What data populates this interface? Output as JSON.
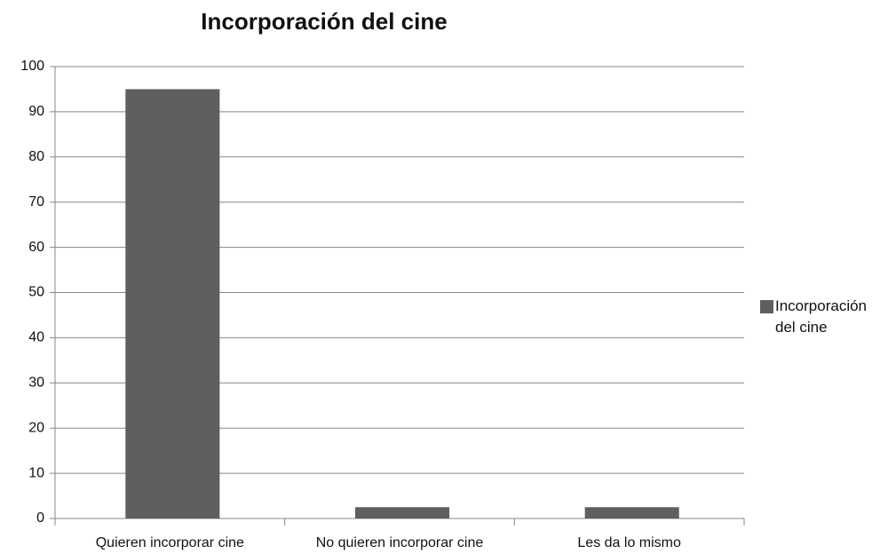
{
  "chart_data": {
    "type": "bar",
    "title": "Incorporación del cine",
    "categories": [
      "Quieren incorporar cine",
      "No quieren incorporar cine",
      "Les da lo mismo"
    ],
    "series": [
      {
        "name": "Incorporación del cine",
        "color": "#5f5f5f",
        "values": [
          95,
          2.5,
          2.5
        ]
      }
    ],
    "ylim": [
      0,
      100
    ],
    "yticks": [
      0,
      10,
      20,
      30,
      40,
      50,
      60,
      70,
      80,
      90,
      100
    ],
    "grid": true,
    "legend": "right"
  }
}
